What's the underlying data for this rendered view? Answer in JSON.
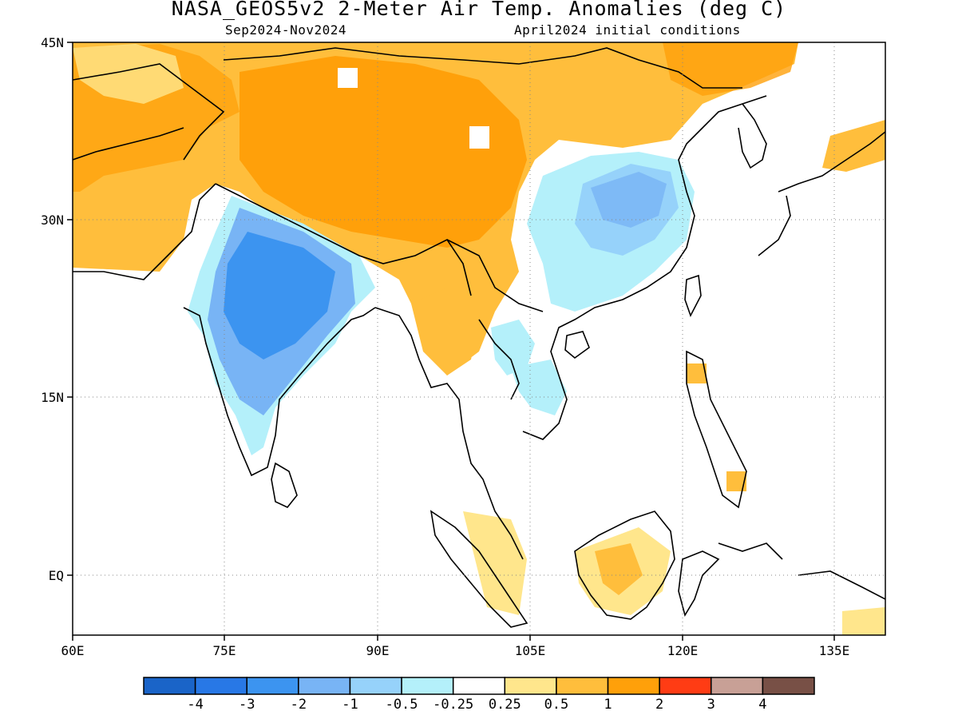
{
  "title": "NASA_GEOS5v2 2-Meter Air Temp. Anomalies (deg C)",
  "subtitle_left": "Sep2024-Nov2024",
  "subtitle_right": "April2024 initial conditions",
  "axes": {
    "x_ticks": [
      "60E",
      "75E",
      "90E",
      "105E",
      "120E",
      "135E"
    ],
    "y_ticks": [
      "45N",
      "30N",
      "15N",
      "EQ"
    ],
    "lon_range": [
      60,
      140
    ],
    "lat_range": [
      -5,
      45
    ],
    "grid": "dotted"
  },
  "colorbar": {
    "labels": [
      "-4",
      "-3",
      "-2",
      "-1",
      "-0.5",
      "-0.25",
      "0.25",
      "0.5",
      "1",
      "2",
      "3",
      "4"
    ],
    "colors": [
      "#1a64c8",
      "#2878e6",
      "#3c94f0",
      "#78b4f5",
      "#96d2fa",
      "#b4f0fa",
      "#ffffff",
      "#ffe68c",
      "#ffbe3c",
      "#ffa00a",
      "#ff3c14",
      "#c8a096",
      "#785046"
    ]
  }
}
